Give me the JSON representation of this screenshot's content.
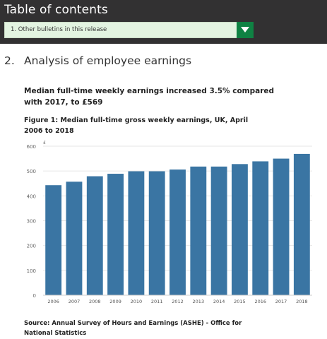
{
  "toc": {
    "title": "Table of contents",
    "select_value": "1. Other bulletins in this release"
  },
  "section": {
    "number": "2.",
    "title": "Analysis of employee earnings"
  },
  "summary": "Median full-time weekly earnings increased 3.5% compared with 2017, to £569",
  "colors": {
    "header_bg": "#323132",
    "select_bg": "#e3f4e1",
    "select_button": "#0f8243",
    "bar": "#3a75a3"
  },
  "icons": {
    "dropdown": "chevron-down-icon"
  },
  "chart_data": {
    "type": "bar",
    "title": "Figure 1: Median full-time gross weekly earnings, UK, April 2006 to 2018",
    "ylabel": "£",
    "xlabel": "",
    "categories": [
      "2006",
      "2007",
      "2008",
      "2009",
      "2010",
      "2011",
      "2012",
      "2013",
      "2014",
      "2015",
      "2016",
      "2017",
      "2018"
    ],
    "values": [
      443,
      457,
      479,
      489,
      499,
      499,
      506,
      518,
      518,
      528,
      539,
      550,
      569
    ],
    "ylim": [
      0,
      600
    ],
    "yticks": [
      0,
      100,
      200,
      300,
      400,
      500,
      600
    ],
    "ytick_labels": [
      "0",
      "100",
      "200",
      "300",
      "400",
      "500",
      "600"
    ],
    "grid": true,
    "legend": "none"
  },
  "source": "Source: Annual Survey of Hours and Earnings (ASHE) - Office for National Statistics"
}
